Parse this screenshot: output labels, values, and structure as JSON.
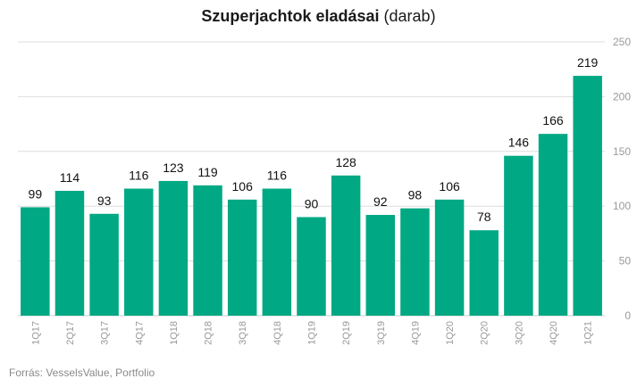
{
  "title": "Szuperjachtok eladásai",
  "unit": "(darab)",
  "source": "Forrás: VesselsValue,  Portfolio",
  "colors": {
    "bar": "#00a884",
    "grid": "#dddddd",
    "axis_text": "#999999",
    "label": "#111111"
  },
  "chart_data": {
    "type": "bar",
    "title": "Szuperjachtok eladásai (darab)",
    "categories": [
      "1Q17",
      "2Q17",
      "3Q17",
      "4Q17",
      "1Q18",
      "2Q18",
      "3Q18",
      "4Q18",
      "1Q19",
      "2Q19",
      "3Q19",
      "4Q19",
      "1Q20",
      "2Q20",
      "3Q20",
      "4Q20",
      "1Q21"
    ],
    "values": [
      99,
      114,
      93,
      116,
      123,
      119,
      106,
      116,
      90,
      128,
      92,
      98,
      106,
      78,
      146,
      166,
      219
    ],
    "ylim": [
      0,
      250
    ],
    "yticks": [
      0,
      50,
      100,
      150,
      200,
      250
    ],
    "y_axis_side": "right",
    "grid": true,
    "data_labels": true
  }
}
